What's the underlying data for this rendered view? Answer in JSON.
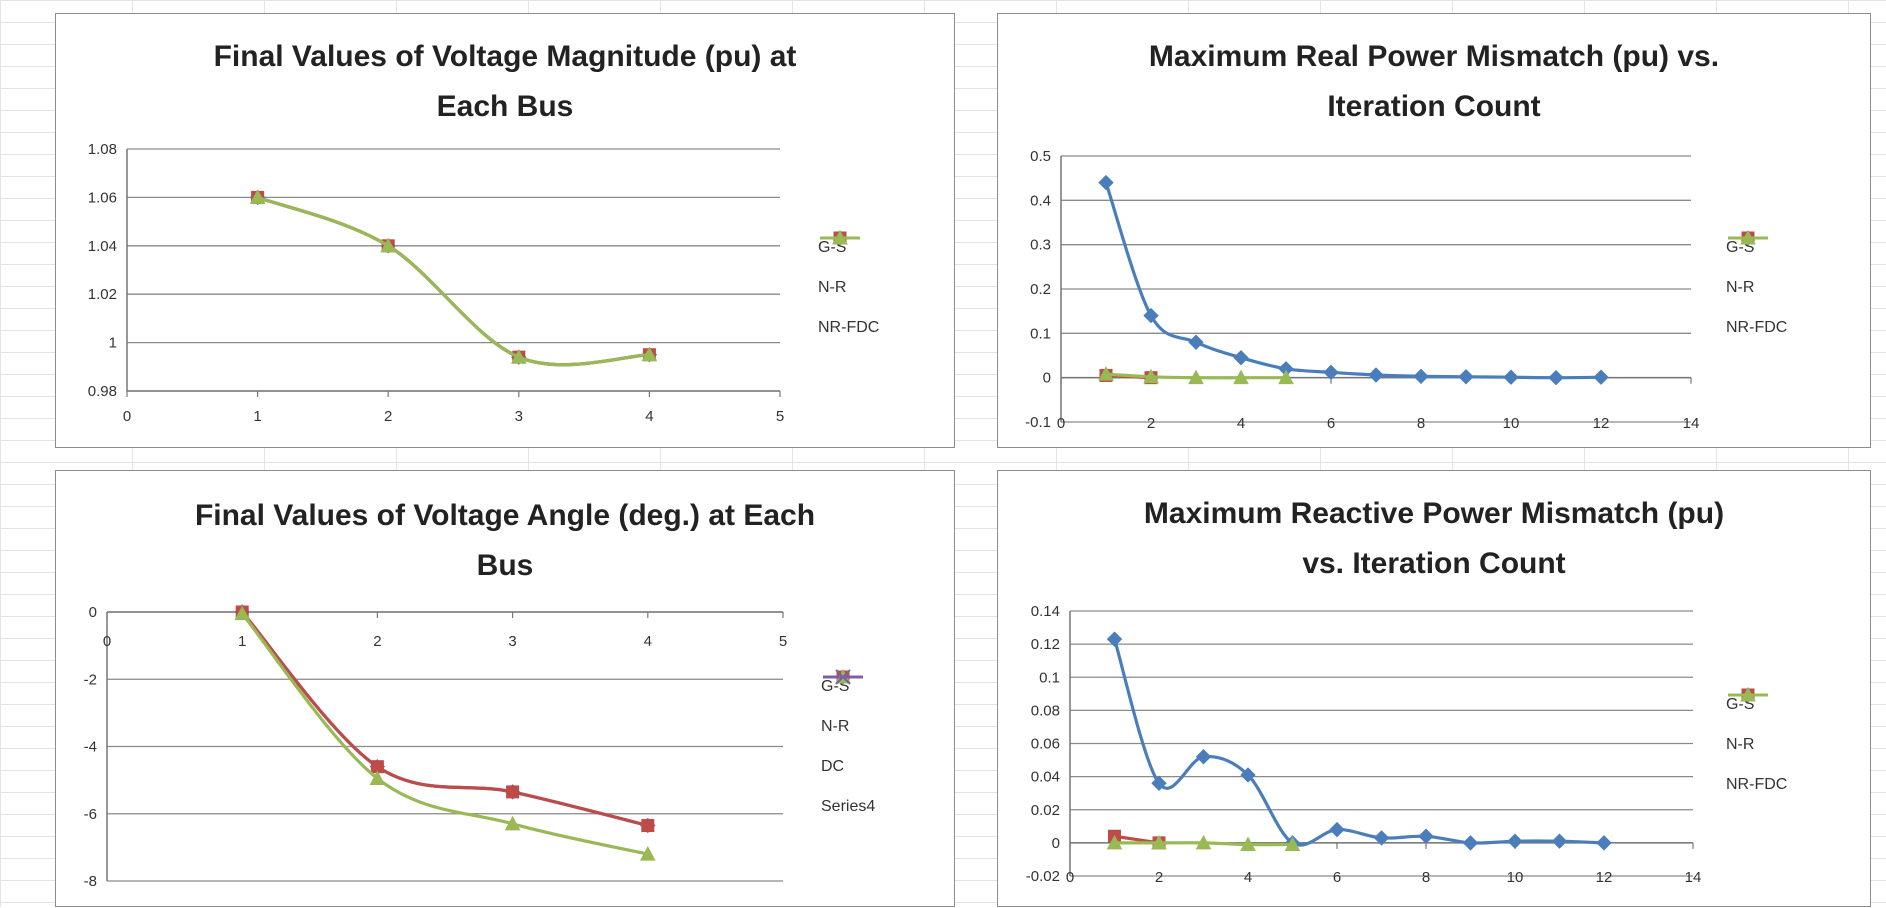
{
  "chart_data": [
    {
      "id": "voltage-magnitude",
      "type": "line",
      "title_lines": [
        "Final Values of Voltage Magnitude (pu) at",
        "Each Bus"
      ],
      "xlim": [
        0,
        5
      ],
      "ylim": [
        0.98,
        1.08
      ],
      "x_ticks": [
        "0",
        "1",
        "2",
        "3",
        "4",
        "5"
      ],
      "y_ticks": [
        "0.98",
        "1",
        "1.02",
        "1.04",
        "1.06",
        "1.08"
      ],
      "grid": true,
      "legend_position": "right",
      "series": [
        {
          "name": "G-S",
          "color": "#4a7ebb",
          "marker": "diamond",
          "x": [
            1,
            2,
            3,
            4
          ],
          "y": [
            1.06,
            1.04,
            0.994,
            0.995
          ]
        },
        {
          "name": "N-R",
          "color": "#be4b48",
          "marker": "square",
          "x": [
            1,
            2,
            3,
            4
          ],
          "y": [
            1.06,
            1.04,
            0.994,
            0.995
          ]
        },
        {
          "name": "NR-FDC",
          "color": "#98b954",
          "marker": "triangle",
          "x": [
            1,
            2,
            3,
            4
          ],
          "y": [
            1.06,
            1.04,
            0.994,
            0.995
          ]
        }
      ]
    },
    {
      "id": "real-power-mismatch",
      "type": "line",
      "title_lines": [
        "Maximum Real Power Mismatch (pu) vs.",
        "Iteration Count"
      ],
      "xlim": [
        0,
        14
      ],
      "ylim": [
        -0.1,
        0.5
      ],
      "x_ticks": [
        "0",
        "2",
        "4",
        "6",
        "8",
        "10",
        "12",
        "14"
      ],
      "y_ticks": [
        "-0.1",
        "0",
        "0.1",
        "0.2",
        "0.3",
        "0.4",
        "0.5"
      ],
      "grid": true,
      "legend_position": "right",
      "series": [
        {
          "name": "G-S",
          "color": "#4a7ebb",
          "marker": "diamond",
          "x": [
            1,
            2,
            3,
            4,
            5,
            6,
            7,
            8,
            9,
            10,
            11,
            12
          ],
          "y": [
            0.44,
            0.14,
            0.08,
            0.045,
            0.02,
            0.012,
            0.006,
            0.003,
            0.002,
            0.001,
            0.0,
            0.001
          ]
        },
        {
          "name": "N-R",
          "color": "#be4b48",
          "marker": "square",
          "x": [
            1,
            2
          ],
          "y": [
            0.005,
            0.0
          ]
        },
        {
          "name": "NR-FDC",
          "color": "#98b954",
          "marker": "triangle",
          "x": [
            1,
            2,
            3,
            4,
            5
          ],
          "y": [
            0.008,
            0.002,
            0.0,
            0.0,
            0.0
          ]
        }
      ]
    },
    {
      "id": "voltage-angle",
      "type": "line",
      "title_lines": [
        "Final Values of Voltage Angle (deg.) at Each",
        "Bus"
      ],
      "xlim": [
        0,
        5
      ],
      "ylim": [
        -8,
        0
      ],
      "x_ticks": [
        "0",
        "1",
        "2",
        "3",
        "4",
        "5"
      ],
      "y_ticks": [
        "-8",
        "-6",
        "-4",
        "-2",
        "0"
      ],
      "x_axis_at_top": true,
      "grid": true,
      "legend_position": "right",
      "series": [
        {
          "name": "G-S",
          "color": "#4a7ebb",
          "marker": "diamond",
          "x": [
            1,
            2,
            3,
            4
          ],
          "y": [
            0,
            -4.6,
            -5.35,
            -6.35
          ]
        },
        {
          "name": "N-R",
          "color": "#be4b48",
          "marker": "square",
          "x": [
            1,
            2,
            3,
            4
          ],
          "y": [
            0,
            -4.6,
            -5.35,
            -6.35
          ]
        },
        {
          "name": "DC",
          "color": "#98b954",
          "marker": "triangle",
          "x": [
            1,
            2,
            3,
            4
          ],
          "y": [
            -0.05,
            -4.95,
            -6.3,
            -7.2
          ]
        },
        {
          "name": "Series4",
          "color": "#7d60a0",
          "marker": "x",
          "x": [],
          "y": []
        }
      ]
    },
    {
      "id": "reactive-power-mismatch",
      "type": "line",
      "title_lines": [
        "Maximum Reactive Power Mismatch (pu)",
        "vs. Iteration Count"
      ],
      "xlim": [
        0,
        14
      ],
      "ylim": [
        -0.02,
        0.14
      ],
      "x_ticks": [
        "0",
        "2",
        "4",
        "6",
        "8",
        "10",
        "12",
        "14"
      ],
      "y_ticks": [
        "-0.02",
        "0",
        "0.02",
        "0.04",
        "0.06",
        "0.08",
        "0.1",
        "0.12",
        "0.14"
      ],
      "grid": true,
      "legend_position": "right",
      "series": [
        {
          "name": "G-S",
          "color": "#4a7ebb",
          "marker": "diamond",
          "x": [
            1,
            2,
            3,
            4,
            5,
            6,
            7,
            8,
            9,
            10,
            11,
            12
          ],
          "y": [
            0.123,
            0.036,
            0.052,
            0.041,
            0.0,
            0.008,
            0.003,
            0.004,
            0.0,
            0.001,
            0.001,
            0.0
          ]
        },
        {
          "name": "N-R",
          "color": "#be4b48",
          "marker": "square",
          "x": [
            1,
            2
          ],
          "y": [
            0.004,
            0.0
          ]
        },
        {
          "name": "NR-FDC",
          "color": "#98b954",
          "marker": "triangle",
          "x": [
            1,
            2,
            3,
            4,
            5
          ],
          "y": [
            0.0,
            0.0,
            0.0,
            -0.001,
            -0.001
          ]
        }
      ]
    }
  ]
}
